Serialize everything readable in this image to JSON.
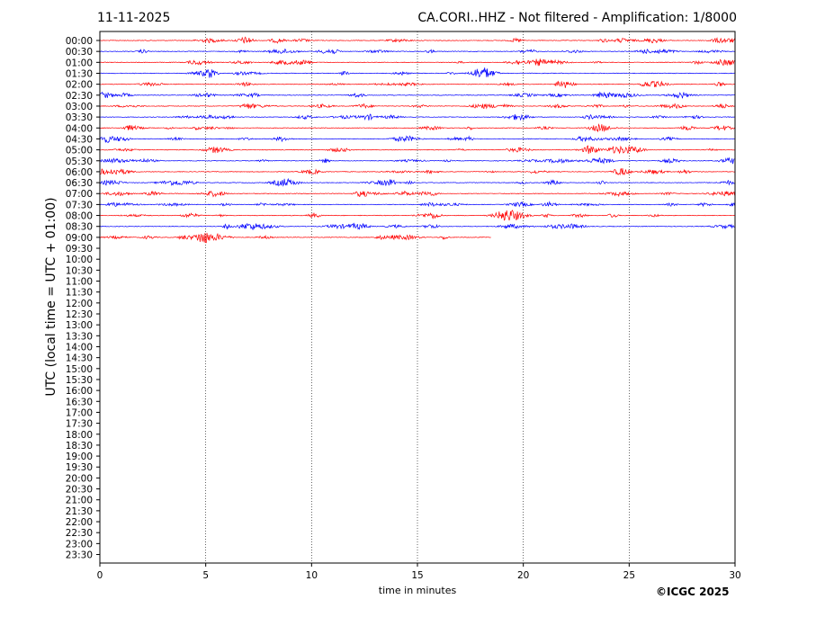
{
  "header": {
    "date": "11-11-2025",
    "title": "CA.CORI..HHZ - Not filtered - Amplification: 1/8000"
  },
  "footer": {
    "copyright": "©ICGC 2025"
  },
  "chart_data": {
    "type": "line",
    "title": "CA.CORI..HHZ - Not filtered - Amplification: 1/8000",
    "xlabel": "time in minutes",
    "ylabel": "UTC (local time = UTC + 01:00)",
    "xlim": [
      0,
      30
    ],
    "x_ticks": [
      0,
      5,
      10,
      15,
      20,
      25,
      30
    ],
    "y_tick_labels": [
      "00:00",
      "00:30",
      "01:00",
      "01:30",
      "02:00",
      "02:30",
      "03:00",
      "03:30",
      "04:00",
      "04:30",
      "05:00",
      "05:30",
      "06:00",
      "06:30",
      "07:00",
      "07:30",
      "08:00",
      "08:30",
      "09:00",
      "09:30",
      "10:00",
      "10:30",
      "11:00",
      "11:30",
      "12:00",
      "12:30",
      "13:00",
      "13:30",
      "14:00",
      "14:30",
      "15:00",
      "15:30",
      "16:00",
      "16:30",
      "17:00",
      "17:30",
      "18:00",
      "18:30",
      "19:00",
      "19:30",
      "20:00",
      "20:30",
      "21:00",
      "21:30",
      "22:00",
      "22:30",
      "23:00",
      "23:30"
    ],
    "grid": "vertical dotted at x ticks",
    "trace_colors": [
      "#ff0000",
      "#0000ff"
    ],
    "traces_recorded": [
      {
        "row": "00:00",
        "end_minute": 30
      },
      {
        "row": "00:30",
        "end_minute": 30
      },
      {
        "row": "01:00",
        "end_minute": 30
      },
      {
        "row": "01:30",
        "end_minute": 30
      },
      {
        "row": "02:00",
        "end_minute": 30
      },
      {
        "row": "02:30",
        "end_minute": 30
      },
      {
        "row": "03:00",
        "end_minute": 30
      },
      {
        "row": "03:30",
        "end_minute": 30
      },
      {
        "row": "04:00",
        "end_minute": 30
      },
      {
        "row": "04:30",
        "end_minute": 30
      },
      {
        "row": "05:00",
        "end_minute": 30
      },
      {
        "row": "05:30",
        "end_minute": 30
      },
      {
        "row": "06:00",
        "end_minute": 30
      },
      {
        "row": "06:30",
        "end_minute": 30
      },
      {
        "row": "07:00",
        "end_minute": 30
      },
      {
        "row": "07:30",
        "end_minute": 30
      },
      {
        "row": "08:00",
        "end_minute": 30
      },
      {
        "row": "08:30",
        "end_minute": 30
      },
      {
        "row": "09:00",
        "end_minute": 18.5
      }
    ]
  }
}
